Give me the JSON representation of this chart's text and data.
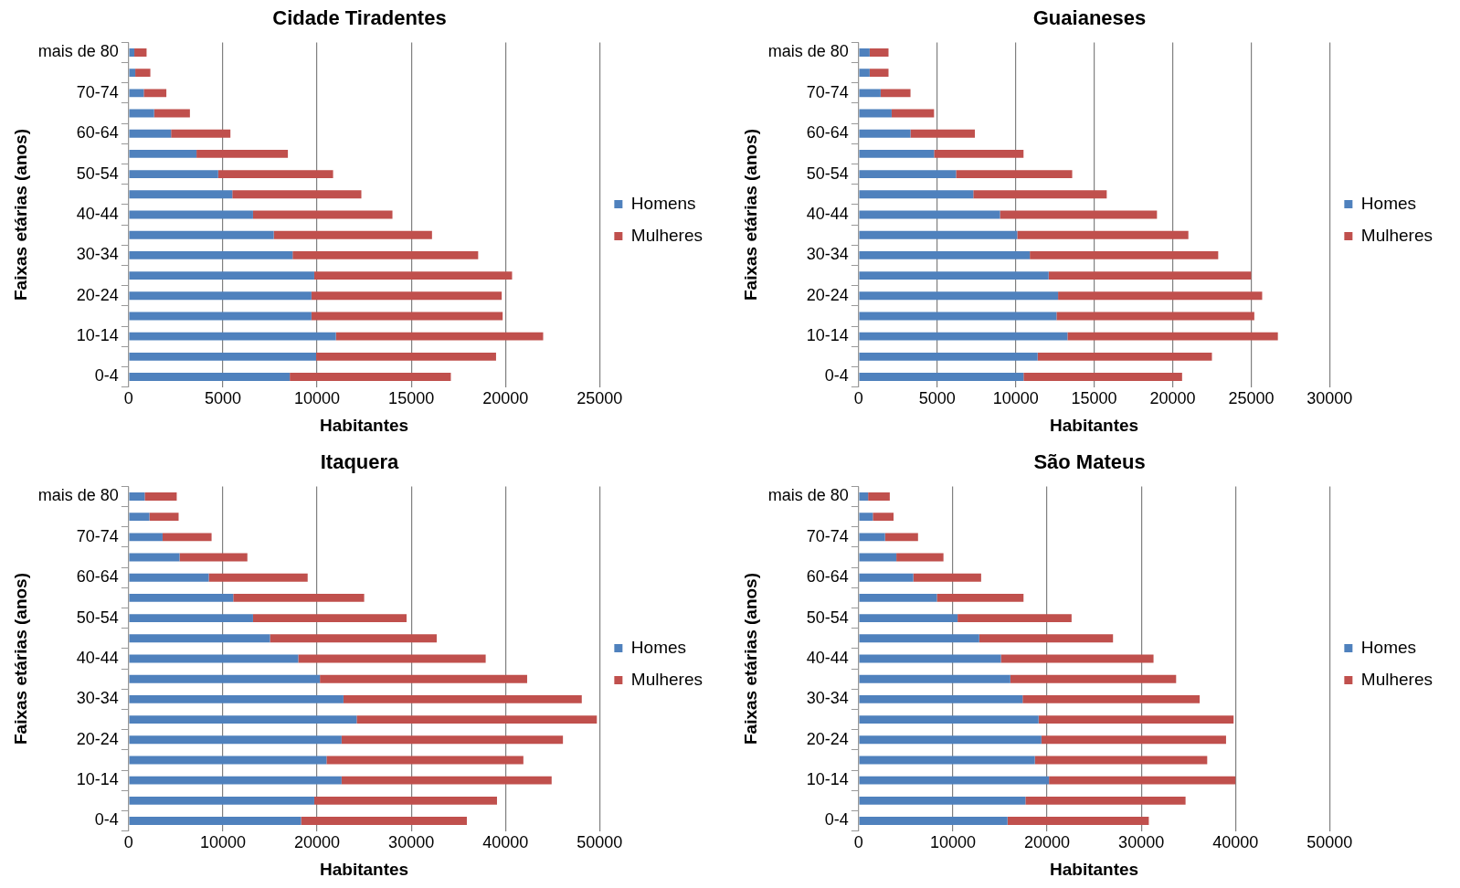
{
  "chart_data": [
    {
      "type": "bar",
      "orientation": "horizontal",
      "stacked": true,
      "title": "Cidade Tiradentes",
      "xlabel": "Habitantes",
      "ylabel": "Faixas etárias (anos)",
      "categories": [
        "mais de 80",
        null,
        "70-74",
        null,
        "60-64",
        null,
        "50-54",
        null,
        "40-44",
        null,
        "30-34",
        null,
        "20-24",
        null,
        "10-14",
        null,
        "0-4"
      ],
      "xlim": [
        0,
        25000
      ],
      "xticks": [
        0,
        5000,
        10000,
        15000,
        20000,
        25000
      ],
      "grid": "x",
      "legend": "right",
      "series": [
        {
          "name": "Homens",
          "color": "#4f81bd",
          "values": [
            300,
            350,
            800,
            1350,
            2250,
            3600,
            4750,
            5500,
            6600,
            7700,
            8700,
            9850,
            9700,
            9700,
            11000,
            9950,
            8550
          ]
        },
        {
          "name": "Mulheres",
          "color": "#c0504d",
          "values": [
            650,
            800,
            1200,
            1900,
            3150,
            4850,
            6100,
            6850,
            7400,
            8400,
            9850,
            10500,
            10100,
            10150,
            11000,
            9550,
            8550
          ]
        }
      ]
    },
    {
      "type": "bar",
      "orientation": "horizontal",
      "stacked": true,
      "title": "Guaianeses",
      "xlabel": "Habitantes",
      "ylabel": "Faixas etárias (anos)",
      "categories": [
        "mais de 80",
        null,
        "70-74",
        null,
        "60-64",
        null,
        "50-54",
        null,
        "40-44",
        null,
        "30-34",
        null,
        "20-24",
        null,
        "10-14",
        null,
        "0-4"
      ],
      "xlim": [
        0,
        30000
      ],
      "xticks": [
        0,
        5000,
        10000,
        15000,
        20000,
        25000,
        30000
      ],
      "grid": "x",
      "legend": "right",
      "series": [
        {
          "name": "Homes",
          "color": "#4f81bd",
          "values": [
            700,
            700,
            1400,
            2100,
            3300,
            4800,
            6200,
            7300,
            9000,
            10100,
            10900,
            12100,
            12700,
            12600,
            13300,
            11400,
            10500
          ]
        },
        {
          "name": "Mulheres",
          "color": "#c0504d",
          "values": [
            1200,
            1200,
            1900,
            2700,
            4100,
            5700,
            7400,
            8500,
            10000,
            10900,
            12000,
            12900,
            13000,
            12600,
            13400,
            11100,
            10100
          ]
        }
      ]
    },
    {
      "type": "bar",
      "orientation": "horizontal",
      "stacked": true,
      "title": "Itaquera",
      "xlabel": "Habitantes",
      "ylabel": "Faixas etárias (anos)",
      "categories": [
        "mais de 80",
        null,
        "70-74",
        null,
        "60-64",
        null,
        "50-54",
        null,
        "40-44",
        null,
        "30-34",
        null,
        "20-24",
        null,
        "10-14",
        null,
        "0-4"
      ],
      "xlim": [
        0,
        50000
      ],
      "xticks": [
        0,
        10000,
        20000,
        30000,
        40000,
        50000
      ],
      "grid": "x",
      "legend": "right",
      "series": [
        {
          "name": "Homes",
          "color": "#4f81bd",
          "values": [
            1700,
            2200,
            3600,
            5400,
            8500,
            11100,
            13200,
            15000,
            18000,
            20300,
            22800,
            24200,
            22600,
            21000,
            22600,
            19700,
            18300
          ]
        },
        {
          "name": "Mulheres",
          "color": "#c0504d",
          "values": [
            3400,
            3100,
            5200,
            7200,
            10500,
            13900,
            16300,
            17700,
            19900,
            22000,
            25300,
            25500,
            23500,
            20900,
            22300,
            19400,
            17600
          ]
        }
      ]
    },
    {
      "type": "bar",
      "orientation": "horizontal",
      "stacked": true,
      "title": "São Mateus",
      "xlabel": "Habitantes",
      "ylabel": "Faixas etárias (anos)",
      "categories": [
        "mais de 80",
        null,
        "70-74",
        null,
        "60-64",
        null,
        "50-54",
        null,
        "40-44",
        null,
        "30-34",
        null,
        "20-24",
        null,
        "10-14",
        null,
        "0-4"
      ],
      "xlim": [
        0,
        50000
      ],
      "xticks": [
        0,
        10000,
        20000,
        30000,
        40000,
        50000
      ],
      "grid": "x",
      "legend": "right",
      "series": [
        {
          "name": "Homes",
          "color": "#4f81bd",
          "values": [
            1000,
            1500,
            2800,
            4000,
            5800,
            8300,
            10500,
            12800,
            15100,
            16100,
            17400,
            19100,
            19400,
            18700,
            20200,
            17700,
            15800
          ]
        },
        {
          "name": "Mulheres",
          "color": "#c0504d",
          "values": [
            2300,
            2200,
            3500,
            5000,
            7200,
            9200,
            12100,
            14200,
            16200,
            17600,
            18800,
            20700,
            19600,
            18300,
            19800,
            17000,
            15000
          ]
        }
      ]
    }
  ]
}
